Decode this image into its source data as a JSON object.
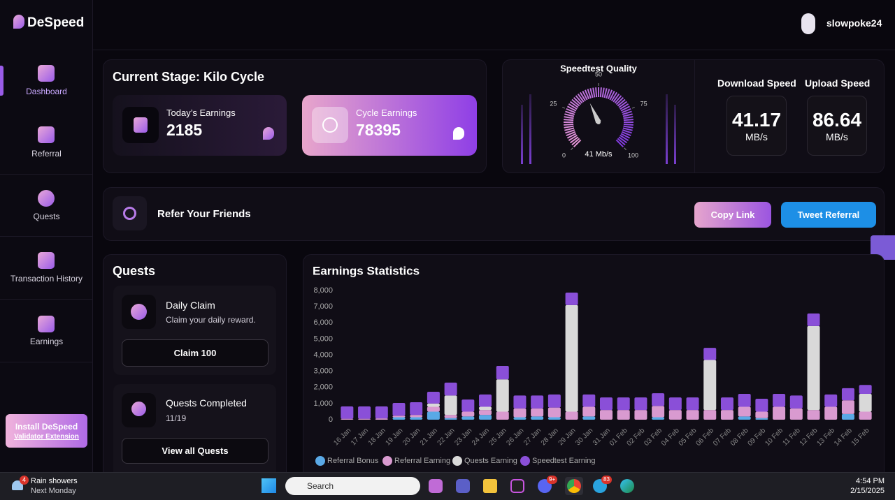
{
  "brand": "DeSpeed",
  "user": {
    "name": "slowpoke24"
  },
  "nav": [
    "Dashboard",
    "Referral",
    "Quests",
    "Transaction History",
    "Earnings"
  ],
  "install": {
    "title": "Install DeSpeed",
    "link": "Validator Extension"
  },
  "stage": {
    "title": "Current Stage: Kilo Cycle",
    "today_label": "Today’s Earnings",
    "today_value": "2185",
    "cycle_label": "Cycle Earnings",
    "cycle_value": "78395"
  },
  "speedtest": {
    "title": "Speedtest Quality",
    "gauge": {
      "value": 41,
      "value_label": "41 Mb/s",
      "lim": [
        0,
        100
      ],
      "ticks": [
        0,
        25,
        50,
        75,
        100
      ]
    },
    "download_label": "Download Speed",
    "download_value": "41.17",
    "download_unit": "MB/s",
    "upload_label": "Upload Speed",
    "upload_value": "86.64",
    "upload_unit": "MB/s"
  },
  "refer": {
    "title": "Refer Your Friends",
    "copy": "Copy Link",
    "tweet": "Tweet Referral"
  },
  "quests": {
    "title": "Quests",
    "daily_title": "Daily Claim",
    "daily_desc": "Claim your daily reward.",
    "claim_button": "Claim 100",
    "completed_title": "Quests Completed",
    "completed_value": "11/19",
    "view_button": "View all Quests"
  },
  "chart_data": {
    "type": "bar",
    "stacked": true,
    "title": "Earnings Statistics",
    "grid": false,
    "categories": [
      "16 Jan",
      "17 Jan",
      "18 Jan",
      "19 Jan",
      "20 Jan",
      "21 Jan",
      "22 Jan",
      "23 Jan",
      "24 Jan",
      "25 Jan",
      "26 Jan",
      "27 Jan",
      "28 Jan",
      "29 Jan",
      "30 Jan",
      "31 Jan",
      "01 Feb",
      "02 Feb",
      "03 Feb",
      "04 Feb",
      "05 Feb",
      "06 Feb",
      "07 Feb",
      "08 Feb",
      "09 Feb",
      "10 Feb",
      "11 Feb",
      "12 Feb",
      "13 Feb",
      "14 Feb",
      "15 Feb"
    ],
    "ylim": [
      0,
      8000
    ],
    "yticks": [
      0,
      {
        "value": 1000,
        "label": "1,000"
      },
      {
        "value": 2000,
        "label": "2,000"
      },
      {
        "value": 3000,
        "label": "3,000"
      },
      {
        "value": 4000,
        "label": "4,000"
      },
      {
        "value": 5000,
        "label": "5,000"
      },
      {
        "value": 6000,
        "label": "6,000"
      },
      {
        "value": 7000,
        "label": "7,000"
      },
      {
        "value": 8000,
        "label": "8,000"
      }
    ],
    "series": [
      {
        "name": "Referral Bonus",
        "color": "#5aa9e6",
        "values": [
          0,
          0,
          0,
          150,
          150,
          500,
          100,
          200,
          300,
          0,
          150,
          200,
          150,
          0,
          200,
          0,
          0,
          0,
          150,
          0,
          0,
          0,
          0,
          200,
          100,
          0,
          0,
          0,
          0,
          350,
          0
        ]
      },
      {
        "name": "Referral Earning",
        "color": "#d99ad0",
        "values": [
          60,
          60,
          80,
          100,
          150,
          300,
          200,
          300,
          300,
          500,
          550,
          500,
          600,
          500,
          600,
          600,
          600,
          600,
          700,
          600,
          600,
          600,
          600,
          600,
          400,
          800,
          700,
          600,
          800,
          850,
          500
        ]
      },
      {
        "name": "Quests Earning",
        "color": "#d9d9d9",
        "values": [
          0,
          0,
          0,
          0,
          0,
          200,
          1200,
          0,
          200,
          2000,
          0,
          0,
          0,
          6600,
          0,
          0,
          0,
          0,
          0,
          0,
          0,
          3100,
          0,
          0,
          0,
          0,
          0,
          5200,
          0,
          0,
          1100
        ]
      },
      {
        "name": "Speedtest Earning",
        "color": "#8a4fd8",
        "values": [
          760,
          760,
          740,
          790,
          780,
          730,
          800,
          750,
          760,
          830,
          800,
          800,
          810,
          770,
          760,
          780,
          780,
          780,
          790,
          780,
          780,
          750,
          780,
          800,
          800,
          800,
          800,
          780,
          760,
          750,
          550
        ]
      }
    ]
  },
  "taskbar": {
    "weather_badge": "4",
    "weather": "Rain showers",
    "weather_sub": "Next Monday",
    "search": "Search",
    "discord_badge": "9+",
    "telegram_badge": "83",
    "time": "4:54 PM",
    "date": "2/15/2025"
  }
}
